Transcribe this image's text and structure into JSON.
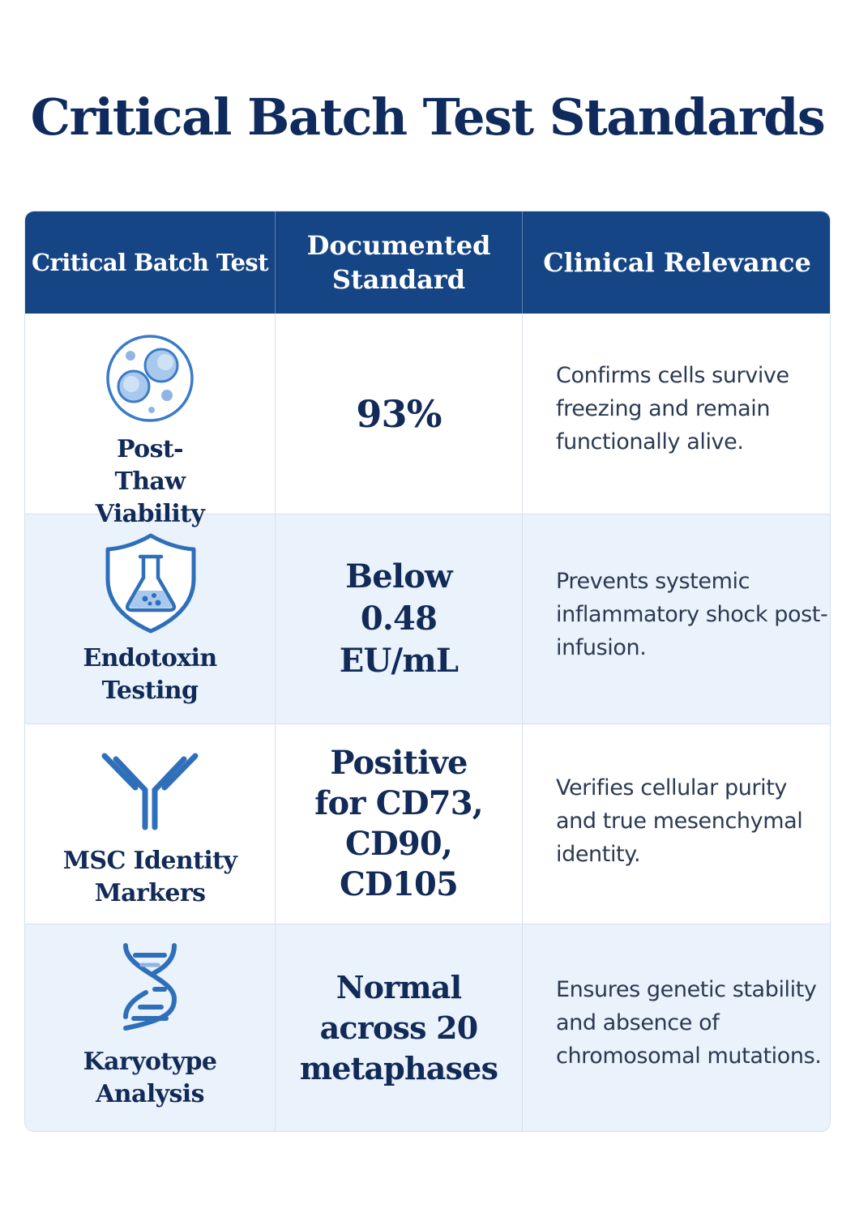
{
  "title": "Critical Batch Test Standards",
  "headers": [
    "Critical Batch Test",
    "Documented Standard",
    "Clinical Relevance"
  ],
  "colors": {
    "header_bg": "#154584",
    "title": "#0f2b5e",
    "icon": "#3a7bc8",
    "row_alt": "#eaf2fb"
  },
  "rows": [
    {
      "icon": "cells-icon",
      "test": "Post-Thaw Viability",
      "standard": "93%",
      "relevance": "Confirms cells survive freezing and remain functionally alive."
    },
    {
      "icon": "shield-flask-icon",
      "test": "Endotoxin Testing",
      "standard": "Below 0.48 EU/mL",
      "relevance": "Prevents systemic inflammatory shock post-infusion."
    },
    {
      "icon": "antibody-icon",
      "test": "MSC Identity Markers",
      "standard": "Positive for CD73, CD90, CD105",
      "relevance": "Verifies cellular purity and true mesenchymal identity."
    },
    {
      "icon": "dna-icon",
      "test": "Karyotype Analysis",
      "standard": "Normal across 20 metaphases",
      "relevance": "Ensures genetic stability and absence of chromosomal mutations."
    }
  ]
}
